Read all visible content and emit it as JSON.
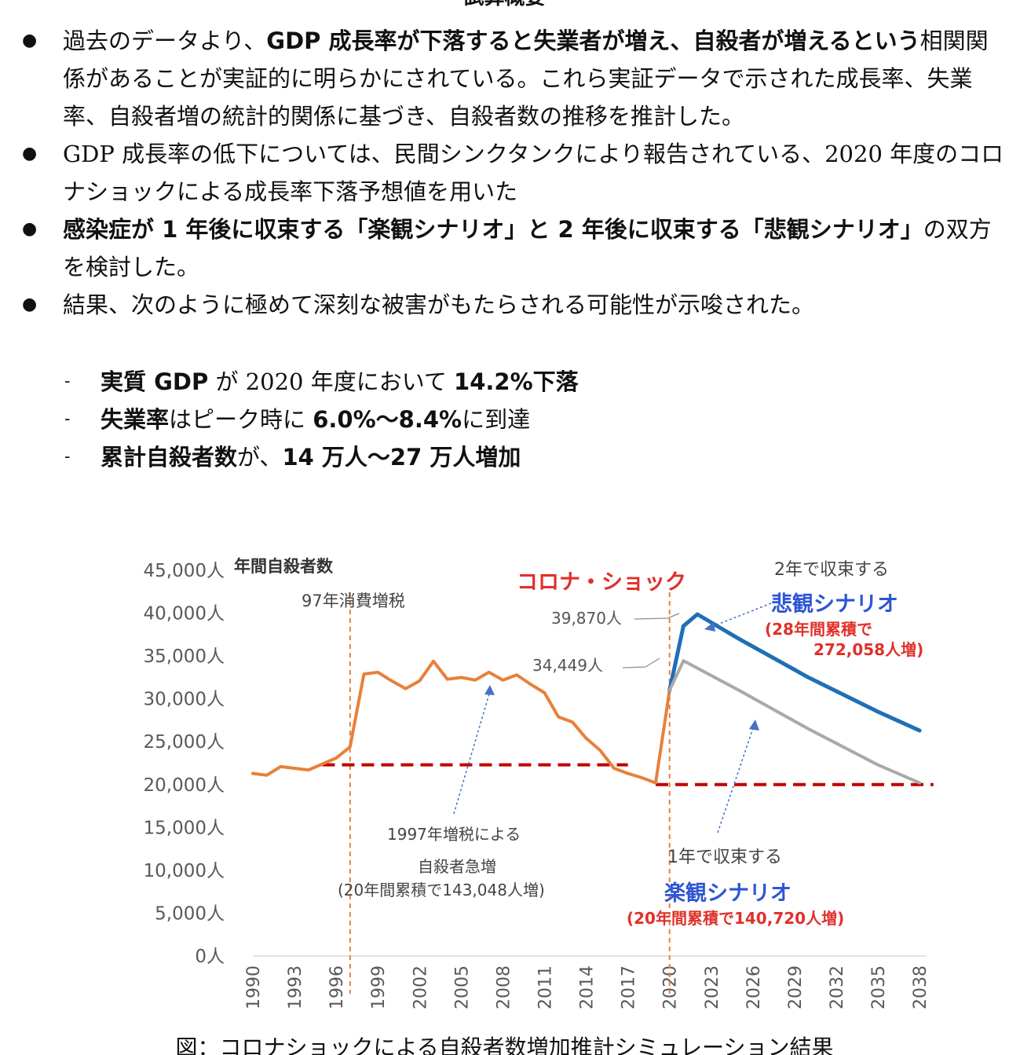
{
  "heading": "試算概要",
  "bullets": [
    {
      "parts": [
        {
          "t": "過去のデータより、",
          "b": false
        },
        {
          "t": "GDP 成長率が下落すると失業者が増え、自殺者が増えるという",
          "b": true
        },
        {
          "t": "相関関係があることが実証的に明らかにされている。これら実証データで示された成長率、失業率、自殺者増の統計的関係に基づき、自殺者数の推移を推計した。",
          "b": false
        }
      ]
    },
    {
      "parts": [
        {
          "t": "GDP 成長率の低下については、民間シンクタンクにより報告されている、2020 年度のコロナショックによる成長率下落予想値を用いた",
          "b": false
        }
      ]
    },
    {
      "parts": [
        {
          "t": "感染症が 1 年後に収束する「楽観シナリオ」と 2 年後に収束する「悲観シナリオ」",
          "b": true
        },
        {
          "t": "の双方を検討した。",
          "b": false
        }
      ]
    },
    {
      "parts": [
        {
          "t": "結果、次のように極めて深刻な被害がもたらされる可能性が示唆された。",
          "b": false
        }
      ]
    }
  ],
  "subbullets": [
    {
      "parts": [
        {
          "t": "実質 GDP",
          "b": true
        },
        {
          "t": " が 2020 年度において ",
          "b": false
        },
        {
          "t": "14.2%下落",
          "b": true
        }
      ]
    },
    {
      "parts": [
        {
          "t": "失業率",
          "b": true
        },
        {
          "t": "はピーク時に ",
          "b": false
        },
        {
          "t": "6.0%～8.4%",
          "b": true
        },
        {
          "t": "に到達",
          "b": false
        }
      ]
    },
    {
      "parts": [
        {
          "t": "累計自殺者数",
          "b": true
        },
        {
          "t": "が、",
          "b": false
        },
        {
          "t": "14 万人～27 万人増加",
          "b": true
        }
      ]
    }
  ],
  "chart_data": {
    "type": "line",
    "ylabel": "年間自殺者数",
    "ylim": [
      0,
      45000
    ],
    "y_ticks": [
      "0人",
      "5,000人",
      "10,000人",
      "15,000人",
      "20,000人",
      "25,000人",
      "30,000人",
      "35,000人",
      "40,000人",
      "45,000人"
    ],
    "x_ticks": [
      "1990",
      "1993",
      "1996",
      "1999",
      "2002",
      "2005",
      "2008",
      "2011",
      "2014",
      "2017",
      "2020",
      "2023",
      "2026",
      "2029",
      "2032",
      "2035",
      "2038"
    ],
    "colors": {
      "historical": "#e8803a",
      "pessimistic": "#1f6fb5",
      "optimistic": "#a9a9a9",
      "baseline": "#c00000",
      "event": "#e8803a",
      "pointer": "#4472c4",
      "label_red": "#e0302a",
      "label_blue": "#2f55d4"
    },
    "series": [
      {
        "key": "historical",
        "x": [
          1990,
          1991,
          1992,
          1993,
          1994,
          1995,
          1996,
          1997,
          1998,
          1999,
          2000,
          2001,
          2002,
          2003,
          2004,
          2005,
          2006,
          2007,
          2008,
          2009,
          2010,
          2011,
          2012,
          2013,
          2014,
          2015,
          2016,
          2017,
          2018,
          2019,
          2020
        ],
        "values": [
          21300,
          21100,
          22100,
          21900,
          21700,
          22400,
          23100,
          24400,
          32900,
          33100,
          32100,
          31200,
          32100,
          34400,
          32300,
          32500,
          32200,
          33100,
          32200,
          32800,
          31700,
          30700,
          27900,
          27300,
          25400,
          24000,
          21900,
          21300,
          20800,
          20200,
          31000
        ]
      },
      {
        "key": "pessimistic",
        "x": [
          2020,
          2021,
          2022,
          2025,
          2030,
          2035,
          2038
        ],
        "values": [
          31000,
          38500,
          39870,
          37000,
          32500,
          28500,
          26300
        ]
      },
      {
        "key": "optimistic",
        "x": [
          2020,
          2021,
          2025,
          2030,
          2035,
          2038
        ],
        "values": [
          31000,
          34449,
          31000,
          26500,
          22300,
          20200
        ]
      }
    ],
    "baselines": [
      {
        "x0": 1995,
        "x1": 2017,
        "y": 22300
      },
      {
        "x0": 2019,
        "x1": 2039,
        "y": 20000
      }
    ],
    "event_lines": [
      1997,
      2020
    ],
    "annotations": {
      "corona": "コロナ・ショック",
      "tax97": "97年消費増税",
      "val_pess": "39,870人",
      "val_opt": "34,449人",
      "pess_head": "2年で収束する",
      "pess_name": "悲観シナリオ",
      "pess_sum1": "(28年間累積で",
      "pess_sum2": "272,058人増)",
      "opt_head": "1年で収束する",
      "opt_name": "楽観シナリオ",
      "opt_sum": "(20年間累積で140,720人増)",
      "hist1": "1997年増税による",
      "hist2": "自殺者急増",
      "hist3": "(20年間累積で143,048人増)"
    }
  },
  "caption": "図：コロナショックによる自殺者数増加推計シミュレーション結果"
}
